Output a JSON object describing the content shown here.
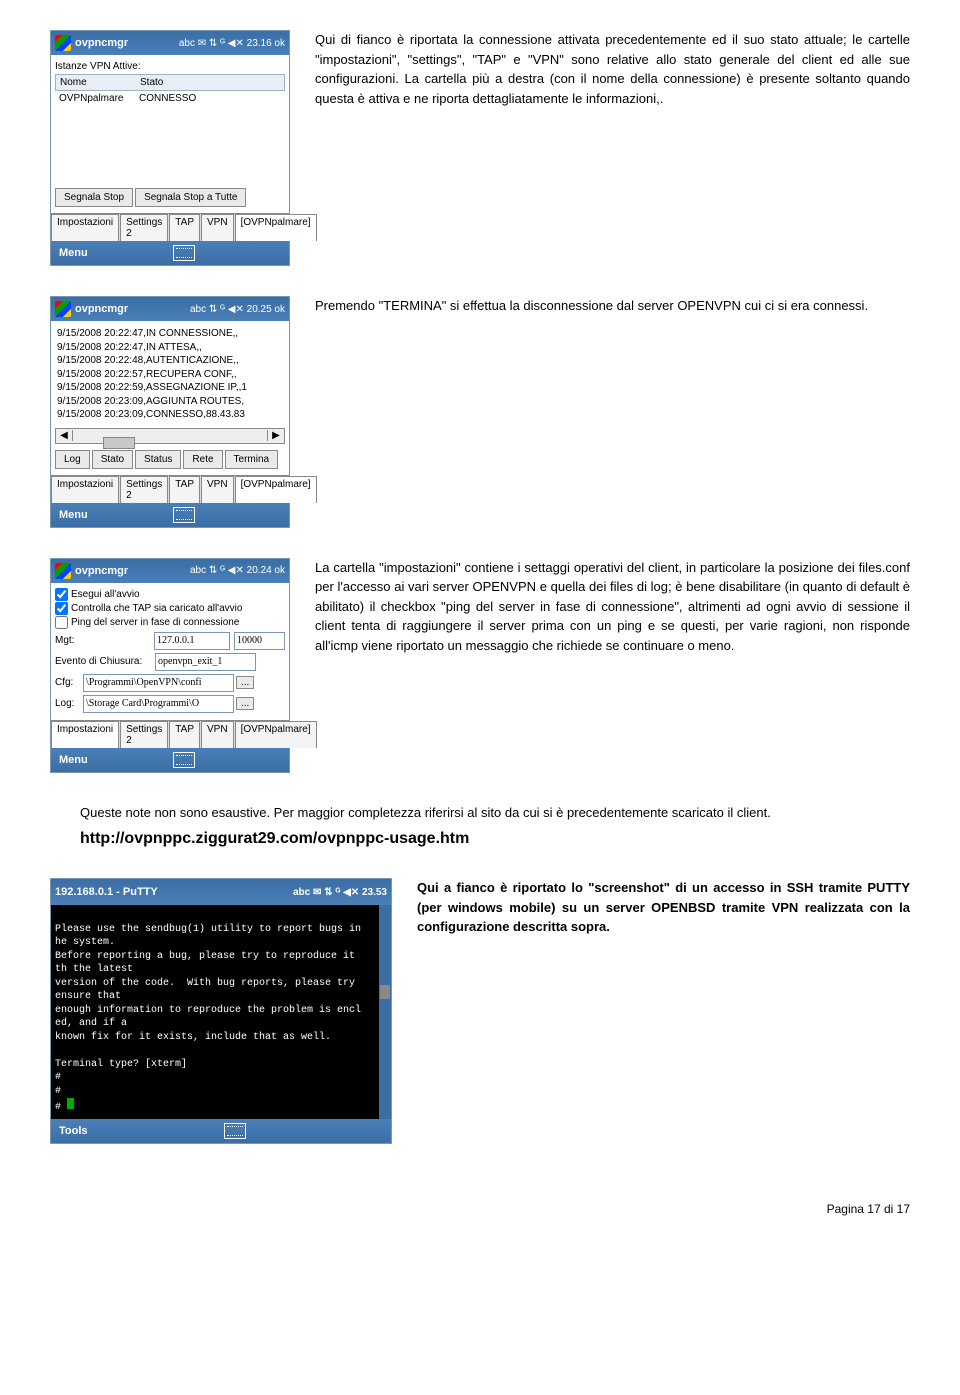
{
  "s1": {
    "title": "ovpncmgr",
    "tmeta": "abc   ✉ ⇅ ᴳ   ◀✕ 23.16   ok",
    "lbl": "Istanze VPN Attive:",
    "th1": "Nome",
    "th2": "Stato",
    "r1": "OVPNpalmare",
    "r2": "CONNESSO",
    "b1": "Segnala Stop",
    "b2": "Segnala Stop a Tutte",
    "tabs": [
      "Impostazioni",
      "Settings 2",
      "TAP",
      "VPN",
      "[OVPNpalmare]"
    ],
    "menu": "Menu",
    "txt": "Qui di fianco è riportata la connessione attivata precedentemente ed il suo stato attuale; le cartelle \"impostazioni\", \"settings\", \"TAP\" e \"VPN\" sono relative allo stato generale del client ed alle sue configurazioni. La cartella più a destra (con il nome della connessione) è presente soltanto quando questa è attiva e ne riporta dettagliatamente le informazioni,."
  },
  "s2": {
    "title": "ovpncmgr",
    "tmeta": "abc      ⇅ ᴳ   ◀✕ 20.25   ok",
    "log": [
      "9/15/2008 20:22:47,IN CONNESSIONE,,",
      "9/15/2008 20:22:47,IN ATTESA,,",
      "9/15/2008 20:22:48,AUTENTICAZIONE,,",
      "9/15/2008 20:22:57,RECUPERA CONF,,",
      "9/15/2008 20:22:59,ASSEGNAZIONE IP,,1",
      "9/15/2008 20:23:09,AGGIUNTA ROUTES,",
      "9/15/2008 20:23:09,CONNESSO,88.43.83"
    ],
    "btns": [
      "Log",
      "Stato",
      "Status",
      "Rete",
      "Termina"
    ],
    "tabs": [
      "Impostazioni",
      "Settings 2",
      "TAP",
      "VPN",
      "[OVPNpalmare]"
    ],
    "menu": "Menu",
    "txt": "Premendo \"TERMINA\" si effettua la disconnessione dal server OPENVPN cui ci si era connessi."
  },
  "s3": {
    "title": "ovpncmgr",
    "tmeta": "abc      ⇅ ᴳ   ◀✕ 20.24   ok",
    "c1": "Esegui all'avvio",
    "c2": "Controlla che TAP sia caricato all'avvio",
    "c3": "Ping del server in fase di connessione",
    "mgt": "Mgt:",
    "mgtv1": "127.0.0.1",
    "mgtv2": "10000",
    "ev": "Evento di Chiusura:",
    "evv": "openvpn_exit_1",
    "cfg": "Cfg:",
    "cfgv": "\\Programmi\\OpenVPN\\confi",
    "lg": "Log:",
    "lgv": "\\Storage Card\\Programmi\\O",
    "tabs": [
      "Impostazioni",
      "Settings 2",
      "TAP",
      "VPN",
      "[OVPNpalmare]"
    ],
    "menu": "Menu",
    "txt": "La cartella \"impostazioni\" contiene i settaggi operativi del client, in particolare la posizione dei files.conf per l'accesso ai vari server OPENVPN e quella dei files di log; è bene disabilitare (in quanto di default è abilitato) il checkbox \"ping del server in fase di connessione\", altrimenti ad ogni avvio di sessione il client tenta di raggiungere il server prima con un ping e se questi, per varie ragioni, non risponde all'icmp viene riportato un messaggio che richiede se continuare o meno."
  },
  "note": "Queste note non sono esaustive. Per maggior completezza riferirsi al sito da cui si è precedentemente scaricato il client.",
  "url": "http://ovpnppc.ziggurat29.com/ovpnppc-usage.htm",
  "s5": {
    "title": "192.168.0.1 - PuTTY",
    "tmeta": "abc   ✉   ⇅ ᴳ   ◀✕ 23.53",
    "term": "\nPlease use the sendbug(1) utility to report bugs in\nhe system.\nBefore reporting a bug, please try to reproduce it\nth the latest\nversion of the code.  With bug reports, please try\nensure that\nenough information to reproduce the problem is encl\ned, and if a\nknown fix for it exists, include that as well.\n\nTerminal type? [xterm]\n#\n#\n# ",
    "menu": "Tools",
    "txt": "Qui a fianco è riportato lo \"screenshot\" di un accesso in SSH tramite PUTTY (per windows mobile) su un server OPENBSD tramite VPN realizzata con la configurazione descritta sopra."
  },
  "ft": "Pagina 17 di 17"
}
